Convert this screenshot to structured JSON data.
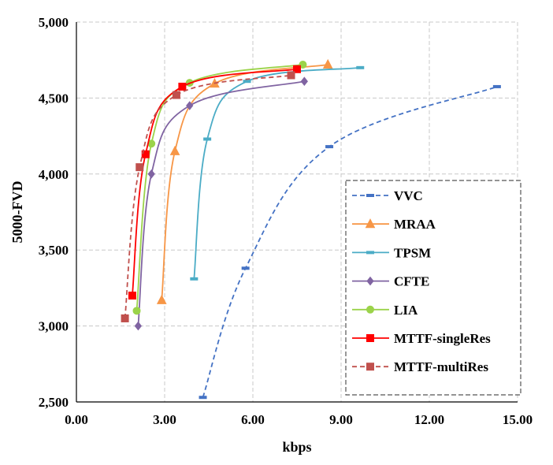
{
  "chart_data": {
    "type": "line",
    "title": "",
    "xlabel": "kbps",
    "ylabel": "5000-FVD",
    "xlim": [
      0,
      15
    ],
    "ylim": [
      2500,
      5000
    ],
    "grid": true,
    "legend_position": "bottom-right",
    "x_tick_labels": [
      "0.00",
      "3.00",
      "6.00",
      "9.00",
      "12.00",
      "15.00"
    ],
    "x_tick_values": [
      0,
      3,
      6,
      9,
      12,
      15
    ],
    "y_tick_labels": [
      "2,500",
      "3,000",
      "3,500",
      "4,000",
      "4,500",
      "5,000"
    ],
    "y_tick_values": [
      2500,
      3000,
      3500,
      4000,
      4500,
      5000
    ],
    "series": [
      {
        "name": "VVC",
        "color": "#4472C4",
        "dash": "dashed",
        "marker": "dash",
        "points": [
          [
            4.3,
            2530
          ],
          [
            5.75,
            3380
          ],
          [
            8.6,
            4180
          ],
          [
            14.3,
            4575
          ]
        ]
      },
      {
        "name": "MRAA",
        "color": "#F79646",
        "dash": "solid",
        "marker": "triangle",
        "points": [
          [
            2.9,
            3170
          ],
          [
            3.35,
            4150
          ],
          [
            4.7,
            4595
          ],
          [
            8.55,
            4720
          ]
        ]
      },
      {
        "name": "TPSM",
        "color": "#4BACC6",
        "dash": "solid",
        "marker": "dash",
        "points": [
          [
            4.0,
            3310
          ],
          [
            4.45,
            4230
          ],
          [
            5.8,
            4610
          ],
          [
            9.65,
            4700
          ]
        ]
      },
      {
        "name": "CFTE",
        "color": "#8064A2",
        "dash": "solid",
        "marker": "diamond",
        "points": [
          [
            2.1,
            3000
          ],
          [
            2.55,
            4000
          ],
          [
            3.85,
            4450
          ],
          [
            7.75,
            4610
          ]
        ]
      },
      {
        "name": "LIA",
        "color": "#9BD34A",
        "dash": "solid",
        "marker": "circle",
        "points": [
          [
            2.05,
            3100
          ],
          [
            2.55,
            4200
          ],
          [
            3.85,
            4600
          ],
          [
            7.7,
            4720
          ]
        ]
      },
      {
        "name": "MTTF-singleRes",
        "color": "#FF0000",
        "dash": "solid",
        "marker": "square",
        "points": [
          [
            1.9,
            3200
          ],
          [
            2.35,
            4130
          ],
          [
            3.6,
            4575
          ],
          [
            7.5,
            4690
          ]
        ]
      },
      {
        "name": "MTTF-multiRes",
        "color": "#C0504D",
        "dash": "dashed",
        "marker": "square",
        "points": [
          [
            1.65,
            3050
          ],
          [
            2.15,
            4045
          ],
          [
            3.4,
            4520
          ],
          [
            7.3,
            4650
          ]
        ]
      }
    ]
  }
}
